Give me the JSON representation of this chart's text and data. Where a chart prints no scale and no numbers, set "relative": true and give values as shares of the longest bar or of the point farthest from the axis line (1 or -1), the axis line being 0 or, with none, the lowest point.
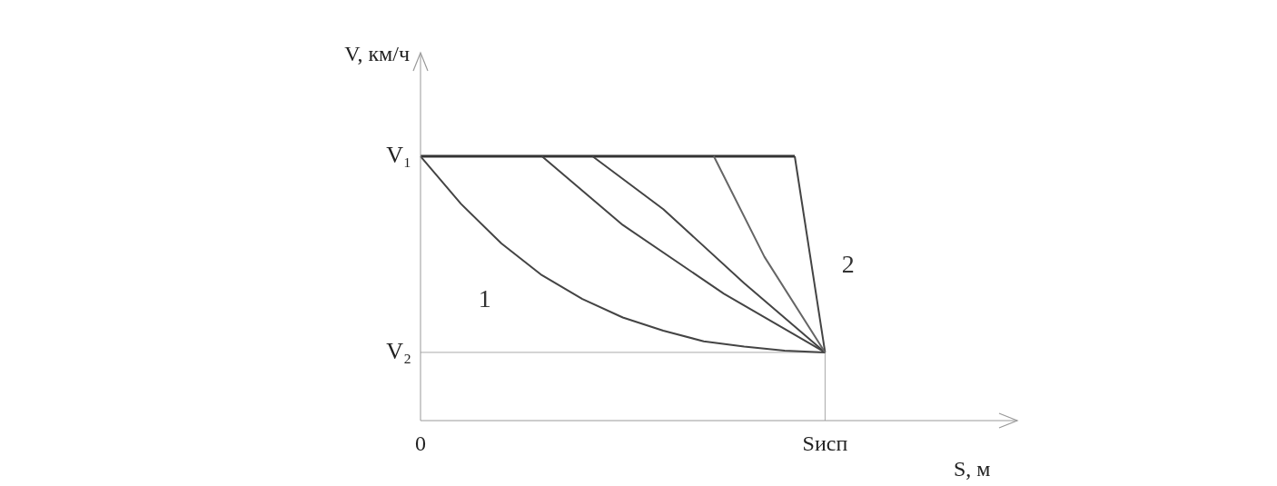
{
  "chart_data": {
    "type": "line",
    "relative": true,
    "xlabel": "S, м",
    "ylabel": "V, км/ч",
    "categories": [
      "0",
      null,
      null,
      null,
      null,
      null,
      null,
      null,
      null,
      null,
      null,
      null,
      null,
      null,
      null,
      null,
      null,
      null,
      null,
      null,
      null,
      null,
      null,
      null,
      null,
      null,
      null,
      null,
      null,
      null,
      null,
      null,
      null,
      null,
      null,
      null,
      null,
      null,
      null,
      null,
      "Sисп",
      null,
      null,
      null,
      null,
      null,
      null,
      null,
      null,
      null,
      null,
      null,
      null,
      null,
      null,
      null,
      null,
      null,
      null,
      null
    ],
    "annotations": [
      {
        "text": "V₁",
        "x": "0",
        "y": 1
      }
    ],
    "ref_lines": [
      {
        "axis": "y",
        "value": 0.258,
        "label": "V₂",
        "color": "#aaaaaa"
      },
      {
        "axis": "x",
        "value": "Sисп",
        "color": "#aaaaaa"
      }
    ],
    "marker": "none",
    "legend": false,
    "grid": false,
    "series": [
      {
        "color": "#333333",
        "values": [
          1,
          null,
          null,
          null,
          null,
          null,
          null,
          null,
          null,
          null,
          null,
          null,
          null,
          null,
          null,
          null,
          null,
          null,
          null,
          null,
          null,
          null,
          null,
          null,
          null,
          null,
          null,
          null,
          null,
          null,
          null,
          null,
          null,
          null,
          null,
          null,
          null,
          1,
          null,
          null,
          null,
          null,
          null,
          null,
          null,
          null,
          null,
          null,
          null,
          null,
          null,
          null,
          null,
          null,
          null,
          null,
          null,
          null,
          null,
          null
        ]
      },
      {
        "name": "2",
        "color": "#444444",
        "values": [
          null,
          null,
          null,
          null,
          null,
          null,
          null,
          null,
          null,
          null,
          null,
          null,
          null,
          null,
          null,
          null,
          null,
          null,
          null,
          null,
          null,
          null,
          null,
          null,
          null,
          null,
          null,
          null,
          null,
          null,
          null,
          null,
          null,
          null,
          null,
          null,
          null,
          1,
          null,
          null,
          0.258,
          null,
          null,
          null,
          null,
          null,
          null,
          null,
          null,
          null,
          null,
          null,
          null,
          null,
          null,
          null,
          null,
          null,
          null,
          null
        ]
      },
      {
        "name": "1",
        "color": "#444444",
        "values": [
          1,
          null,
          null,
          null,
          0.82,
          null,
          null,
          null,
          0.67,
          null,
          null,
          null,
          0.55,
          null,
          null,
          null,
          0.46,
          null,
          null,
          null,
          0.39,
          null,
          null,
          null,
          0.34,
          null,
          null,
          null,
          0.3,
          null,
          null,
          null,
          0.28,
          null,
          null,
          null,
          0.265,
          null,
          null,
          null,
          0.258,
          null,
          null,
          null,
          null,
          null,
          null,
          null,
          null,
          null,
          null,
          null,
          null,
          null,
          null,
          null,
          null,
          null,
          null,
          null
        ]
      },
      {
        "color": "#444444",
        "values": [
          null,
          null,
          null,
          null,
          null,
          null,
          null,
          null,
          null,
          null,
          null,
          null,
          1,
          null,
          null,
          null,
          null,
          null,
          null,
          null,
          0.74,
          null,
          null,
          null,
          null,
          null,
          null,
          null,
          null,
          null,
          0.48,
          null,
          null,
          null,
          null,
          null,
          null,
          null,
          null,
          null,
          0.258,
          null,
          null,
          null,
          null,
          null,
          null,
          null,
          null,
          null,
          null,
          null,
          null,
          null,
          null,
          null,
          null,
          null,
          null,
          null
        ]
      },
      {
        "color": "#444444",
        "values": [
          null,
          null,
          null,
          null,
          null,
          null,
          null,
          null,
          null,
          null,
          null,
          null,
          null,
          null,
          null,
          null,
          null,
          1,
          null,
          null,
          null,
          null,
          null,
          null,
          0.8,
          null,
          null,
          null,
          null,
          null,
          null,
          null,
          0.52,
          null,
          null,
          null,
          null,
          null,
          null,
          null,
          0.258,
          null,
          null,
          null,
          null,
          null,
          null,
          null,
          null,
          null,
          null,
          null,
          null,
          null,
          null,
          null,
          null,
          null,
          null,
          null
        ]
      },
      {
        "color": "#666666",
        "values": [
          null,
          null,
          null,
          null,
          null,
          null,
          null,
          null,
          null,
          null,
          null,
          null,
          null,
          null,
          null,
          null,
          null,
          null,
          null,
          null,
          null,
          null,
          null,
          null,
          null,
          null,
          null,
          null,
          null,
          1,
          null,
          null,
          null,
          null,
          0.62,
          null,
          null,
          null,
          null,
          null,
          0.258,
          null,
          null,
          null,
          null,
          null,
          null,
          null,
          null,
          null,
          null,
          null,
          null,
          null,
          null,
          null,
          null,
          null,
          null,
          null
        ]
      }
    ]
  }
}
